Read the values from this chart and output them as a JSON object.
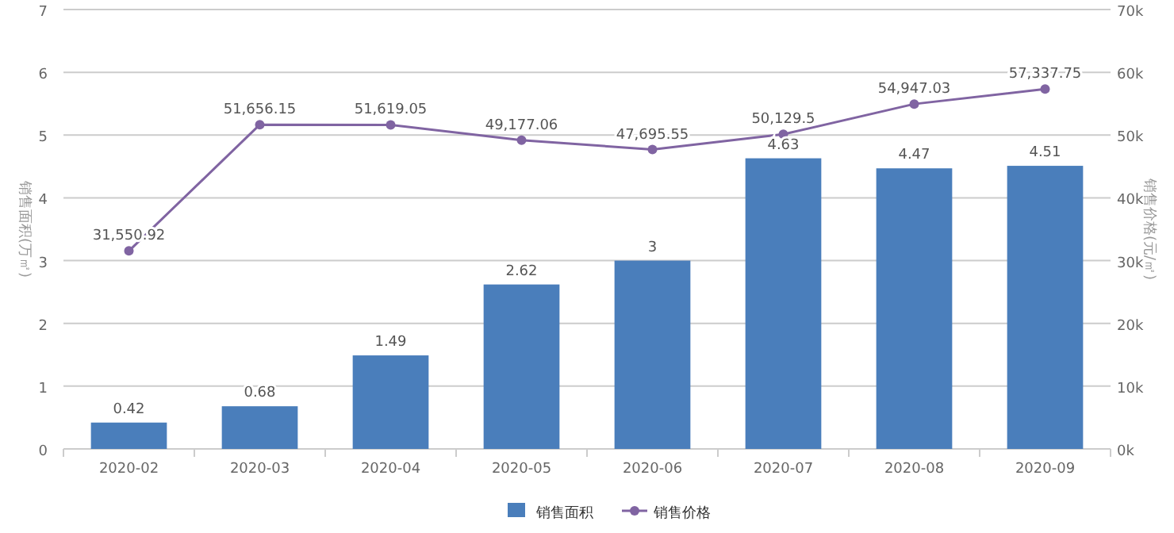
{
  "chart_data": {
    "type": "bar",
    "categories": [
      "2020-02",
      "2020-03",
      "2020-04",
      "2020-05",
      "2020-06",
      "2020-07",
      "2020-08",
      "2020-09"
    ],
    "ylabel": "销售面积(万㎡)",
    "y2label": "销售价格(元/㎡)",
    "ylim": [
      0,
      7
    ],
    "yticks": [
      0,
      1,
      2,
      3,
      4,
      5,
      6,
      7
    ],
    "y2lim": [
      0,
      70000
    ],
    "y2ticks": [
      {
        "value": 0,
        "label": "0k"
      },
      {
        "value": 10000,
        "label": "10k"
      },
      {
        "value": 20000,
        "label": "20k"
      },
      {
        "value": 30000,
        "label": "30k"
      },
      {
        "value": 40000,
        "label": "40k"
      },
      {
        "value": 50000,
        "label": "50k"
      },
      {
        "value": 60000,
        "label": "60k"
      },
      {
        "value": 70000,
        "label": "70k"
      }
    ],
    "grid": "y",
    "legend": "bottom",
    "marker": "circle",
    "series": [
      {
        "name": "销售面积",
        "color": "#4a7ebb",
        "values": [
          0.42,
          0.68,
          1.49,
          2.62,
          3,
          4.63,
          4.47,
          4.51
        ],
        "value_labels": [
          "0.42",
          "0.68",
          "1.49",
          "2.62",
          "3",
          "4.63",
          "4.47",
          "4.51"
        ]
      },
      {
        "name": "销售价格",
        "type": "line",
        "axis": "y2",
        "color": "#8064a2",
        "values": [
          31550.92,
          51656.15,
          51619.05,
          49177.06,
          47695.55,
          50129.5,
          54947.03,
          57337.75
        ],
        "value_labels": [
          "31,550.92",
          "51,656.15",
          "51,619.05",
          "49,177.06",
          "47,695.55",
          "50,129.5",
          "54,947.03",
          "57,337.75"
        ]
      }
    ]
  }
}
